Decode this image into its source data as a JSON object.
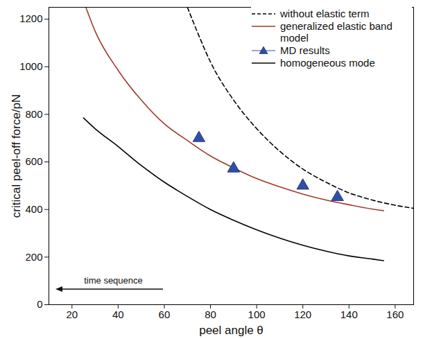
{
  "chart_data": {
    "type": "line",
    "xlabel": "peel angle θ",
    "ylabel": "critical peel-off force/pN",
    "xlim": [
      10,
      168
    ],
    "xticks": [
      20,
      40,
      60,
      80,
      100,
      120,
      140,
      160
    ],
    "ylim": [
      0,
      1250
    ],
    "yticks": [
      0,
      200,
      400,
      600,
      800,
      1000,
      1200
    ],
    "grid": false,
    "legend": "top-right",
    "annotations": [
      {
        "text": "time sequence"
      }
    ],
    "series": [
      {
        "name": "without elastic term",
        "type": "line",
        "color": "#000000",
        "line_style": "dashed",
        "x": [
          70,
          75,
          80,
          90,
          100,
          110,
          120,
          130,
          140,
          150,
          160,
          168
        ],
        "values": [
          1250,
          1130,
          1020,
          860,
          740,
          645,
          570,
          515,
          470,
          440,
          418,
          405
        ]
      },
      {
        "name": "generalized elastic band model",
        "type": "line",
        "color": "#a0392c",
        "line_style": "solid",
        "x": [
          26,
          30,
          40,
          50,
          60,
          70,
          80,
          90,
          100,
          110,
          120,
          130,
          140,
          150,
          155
        ],
        "values": [
          1250,
          1150,
          985,
          860,
          760,
          690,
          625,
          575,
          530,
          495,
          465,
          440,
          420,
          402,
          395
        ]
      },
      {
        "name": "MD results",
        "type": "scatter",
        "color": "#2f4fa8",
        "marker": "triangle",
        "x": [
          75,
          90,
          120,
          135
        ],
        "values": [
          700,
          572,
          500,
          452
        ]
      },
      {
        "name": "homogeneous mode",
        "type": "line",
        "color": "#000000",
        "line_style": "solid",
        "x": [
          25,
          30,
          40,
          50,
          60,
          70,
          80,
          90,
          100,
          110,
          120,
          130,
          140,
          150,
          155
        ],
        "values": [
          785,
          740,
          665,
          585,
          515,
          455,
          400,
          355,
          315,
          280,
          250,
          225,
          205,
          192,
          185
        ]
      }
    ]
  }
}
